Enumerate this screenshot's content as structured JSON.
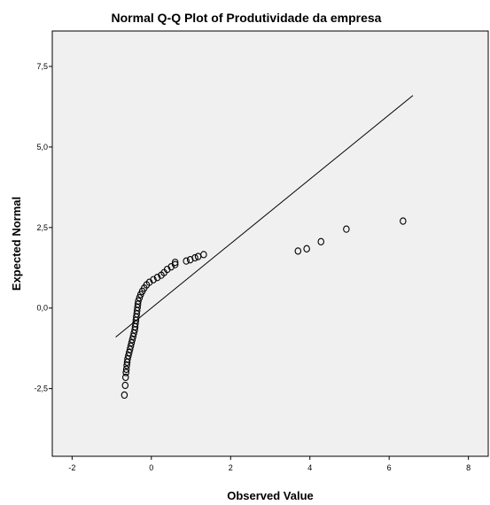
{
  "chart_data": {
    "type": "scatter",
    "title": "Normal Q-Q Plot of Produtividade da empresa",
    "xlabel": "Observed Value",
    "ylabel": "Expected Normal",
    "xlim": [
      -2.5,
      8.5
    ],
    "ylim": [
      -4.6,
      8.6
    ],
    "x_ticks": [
      -2,
      0,
      2,
      4,
      6,
      8
    ],
    "x_tick_labels": [
      "-2",
      "0",
      "2",
      "4",
      "6",
      "8"
    ],
    "y_ticks": [
      -2.5,
      0,
      2.5,
      5,
      7.5
    ],
    "y_tick_labels": [
      "-2,5",
      "0,0",
      "2,5",
      "5,0",
      "7,5"
    ],
    "grid": false,
    "legend": "none",
    "reference_line": {
      "x": [
        -0.9,
        6.6
      ],
      "y": [
        -0.9,
        6.6
      ]
    },
    "series": [
      {
        "marker": "open-circle",
        "color": "#000000",
        "points": [
          [
            -0.68,
            -2.7
          ],
          [
            -0.66,
            -2.4
          ],
          [
            -0.65,
            -2.15
          ],
          [
            -0.64,
            -2.0
          ],
          [
            -0.63,
            -1.9
          ],
          [
            -0.62,
            -1.78
          ],
          [
            -0.61,
            -1.68
          ],
          [
            -0.6,
            -1.58
          ],
          [
            -0.58,
            -1.48
          ],
          [
            -0.56,
            -1.38
          ],
          [
            -0.54,
            -1.28
          ],
          [
            -0.52,
            -1.18
          ],
          [
            -0.5,
            -1.08
          ],
          [
            -0.48,
            -0.98
          ],
          [
            -0.46,
            -0.88
          ],
          [
            -0.44,
            -0.78
          ],
          [
            -0.42,
            -0.68
          ],
          [
            -0.41,
            -0.58
          ],
          [
            -0.4,
            -0.48
          ],
          [
            -0.39,
            -0.38
          ],
          [
            -0.38,
            -0.28
          ],
          [
            -0.37,
            -0.18
          ],
          [
            -0.36,
            -0.08
          ],
          [
            -0.35,
            0.02
          ],
          [
            -0.34,
            0.12
          ],
          [
            -0.33,
            0.22
          ],
          [
            -0.3,
            0.32
          ],
          [
            -0.27,
            0.42
          ],
          [
            -0.23,
            0.52
          ],
          [
            -0.18,
            0.62
          ],
          [
            -0.12,
            0.72
          ],
          [
            -0.05,
            0.8
          ],
          [
            0.05,
            0.88
          ],
          [
            0.15,
            0.95
          ],
          [
            0.25,
            1.02
          ],
          [
            0.32,
            1.1
          ],
          [
            0.4,
            1.2
          ],
          [
            0.5,
            1.28
          ],
          [
            0.6,
            1.35
          ],
          [
            0.6,
            1.42
          ],
          [
            0.88,
            1.46
          ],
          [
            0.98,
            1.5
          ],
          [
            1.1,
            1.56
          ],
          [
            1.18,
            1.6
          ],
          [
            1.32,
            1.66
          ],
          [
            3.7,
            1.77
          ],
          [
            3.92,
            1.84
          ],
          [
            4.28,
            2.06
          ],
          [
            4.92,
            2.45
          ],
          [
            6.35,
            2.7
          ]
        ]
      }
    ]
  }
}
